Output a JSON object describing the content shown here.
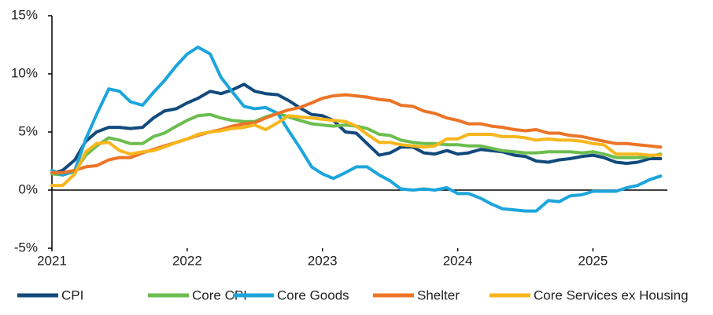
{
  "chart_data": {
    "type": "line",
    "x": [
      2021,
      2021.08,
      2021.17,
      2021.25,
      2021.33,
      2021.42,
      2021.5,
      2021.58,
      2021.67,
      2021.75,
      2021.83,
      2021.92,
      2022,
      2022.08,
      2022.17,
      2022.25,
      2022.33,
      2022.42,
      2022.5,
      2022.58,
      2022.67,
      2022.75,
      2022.83,
      2022.92,
      2023,
      2023.08,
      2023.17,
      2023.25,
      2023.33,
      2023.42,
      2023.5,
      2023.58,
      2023.67,
      2023.75,
      2023.83,
      2023.92,
      2024,
      2024.08,
      2024.17,
      2024.25,
      2024.33,
      2024.42,
      2024.5,
      2024.58,
      2024.67,
      2024.75,
      2024.83,
      2024.92,
      2025,
      2025.08,
      2025.17,
      2025.25,
      2025.33,
      2025.42,
      2025.5
    ],
    "xlim": [
      2021,
      2025.55
    ],
    "xticks": [
      2021,
      2022,
      2023,
      2024,
      2025
    ],
    "ylim": [
      -5,
      15
    ],
    "yticks": [
      {
        "value": -5,
        "label": "-5%"
      },
      {
        "value": 0,
        "label": "0%"
      },
      {
        "value": 5,
        "label": "5%"
      },
      {
        "value": 10,
        "label": "10%"
      },
      {
        "value": 15,
        "label": "15%"
      }
    ],
    "series": [
      {
        "name": "CPI",
        "color": "#124a7c",
        "values": [
          1.4,
          1.7,
          2.6,
          4.2,
          5.0,
          5.4,
          5.4,
          5.3,
          5.4,
          6.2,
          6.8,
          7.0,
          7.5,
          7.9,
          8.5,
          8.3,
          8.6,
          9.1,
          8.5,
          8.3,
          8.2,
          7.7,
          7.1,
          6.5,
          6.4,
          6.0,
          5.0,
          4.9,
          4.0,
          3.0,
          3.2,
          3.7,
          3.7,
          3.2,
          3.1,
          3.4,
          3.1,
          3.2,
          3.5,
          3.4,
          3.3,
          3.0,
          2.9,
          2.5,
          2.4,
          2.6,
          2.7,
          2.9,
          3.0,
          2.8,
          2.4,
          2.3,
          2.4,
          2.7,
          2.7
        ]
      },
      {
        "name": "Core CPI",
        "color": "#6cbd4f",
        "values": [
          1.4,
          1.3,
          1.6,
          3.0,
          3.8,
          4.5,
          4.3,
          4.0,
          4.0,
          4.6,
          4.9,
          5.5,
          6.0,
          6.4,
          6.5,
          6.2,
          6.0,
          5.9,
          5.9,
          6.3,
          6.6,
          6.3,
          6.0,
          5.7,
          5.6,
          5.5,
          5.6,
          5.5,
          5.3,
          4.8,
          4.7,
          4.3,
          4.1,
          4.0,
          4.0,
          3.9,
          3.9,
          3.8,
          3.8,
          3.6,
          3.4,
          3.3,
          3.2,
          3.2,
          3.3,
          3.3,
          3.3,
          3.2,
          3.3,
          3.1,
          2.8,
          2.8,
          2.8,
          2.9,
          3.1
        ]
      },
      {
        "name": "Core Goods",
        "color": "#1ca5dc",
        "values": [
          1.7,
          1.3,
          1.7,
          4.4,
          6.5,
          8.7,
          8.5,
          7.6,
          7.3,
          8.4,
          9.4,
          10.7,
          11.7,
          12.3,
          11.7,
          9.7,
          8.5,
          7.2,
          7.0,
          7.1,
          6.6,
          5.1,
          3.7,
          2.0,
          1.4,
          1.0,
          1.5,
          2.0,
          2.0,
          1.3,
          0.8,
          0.1,
          0.0,
          0.1,
          0.0,
          0.2,
          -0.3,
          -0.3,
          -0.7,
          -1.2,
          -1.6,
          -1.7,
          -1.8,
          -1.8,
          -0.9,
          -1.0,
          -0.5,
          -0.4,
          -0.1,
          -0.1,
          -0.1,
          0.2,
          0.4,
          0.9,
          1.2
        ]
      },
      {
        "name": "Shelter",
        "color": "#ec7427",
        "values": [
          1.5,
          1.5,
          1.7,
          2.0,
          2.1,
          2.6,
          2.8,
          2.8,
          3.2,
          3.5,
          3.8,
          4.1,
          4.4,
          4.7,
          5.0,
          5.2,
          5.5,
          5.7,
          5.8,
          6.2,
          6.6,
          6.9,
          7.1,
          7.5,
          7.9,
          8.1,
          8.2,
          8.1,
          8.0,
          7.8,
          7.7,
          7.3,
          7.2,
          6.8,
          6.6,
          6.2,
          6.0,
          5.7,
          5.7,
          5.5,
          5.4,
          5.2,
          5.1,
          5.2,
          4.9,
          4.9,
          4.7,
          4.6,
          4.4,
          4.2,
          4.0,
          4.0,
          3.9,
          3.8,
          3.7
        ]
      },
      {
        "name": "Core Services ex Housing",
        "color": "#f7b61c",
        "values": [
          0.4,
          0.4,
          1.4,
          3.3,
          4.0,
          4.1,
          3.4,
          3.1,
          3.3,
          3.4,
          3.7,
          4.1,
          4.4,
          4.8,
          5.0,
          5.1,
          5.3,
          5.4,
          5.6,
          5.2,
          5.8,
          6.4,
          6.3,
          6.2,
          6.1,
          6.0,
          5.9,
          5.5,
          4.8,
          4.1,
          4.1,
          3.9,
          3.8,
          3.7,
          3.8,
          4.4,
          4.4,
          4.8,
          4.8,
          4.8,
          4.6,
          4.6,
          4.5,
          4.3,
          4.4,
          4.3,
          4.3,
          4.2,
          4.0,
          3.9,
          3.1,
          3.1,
          3.1,
          3.0,
          3.0
        ]
      }
    ]
  }
}
